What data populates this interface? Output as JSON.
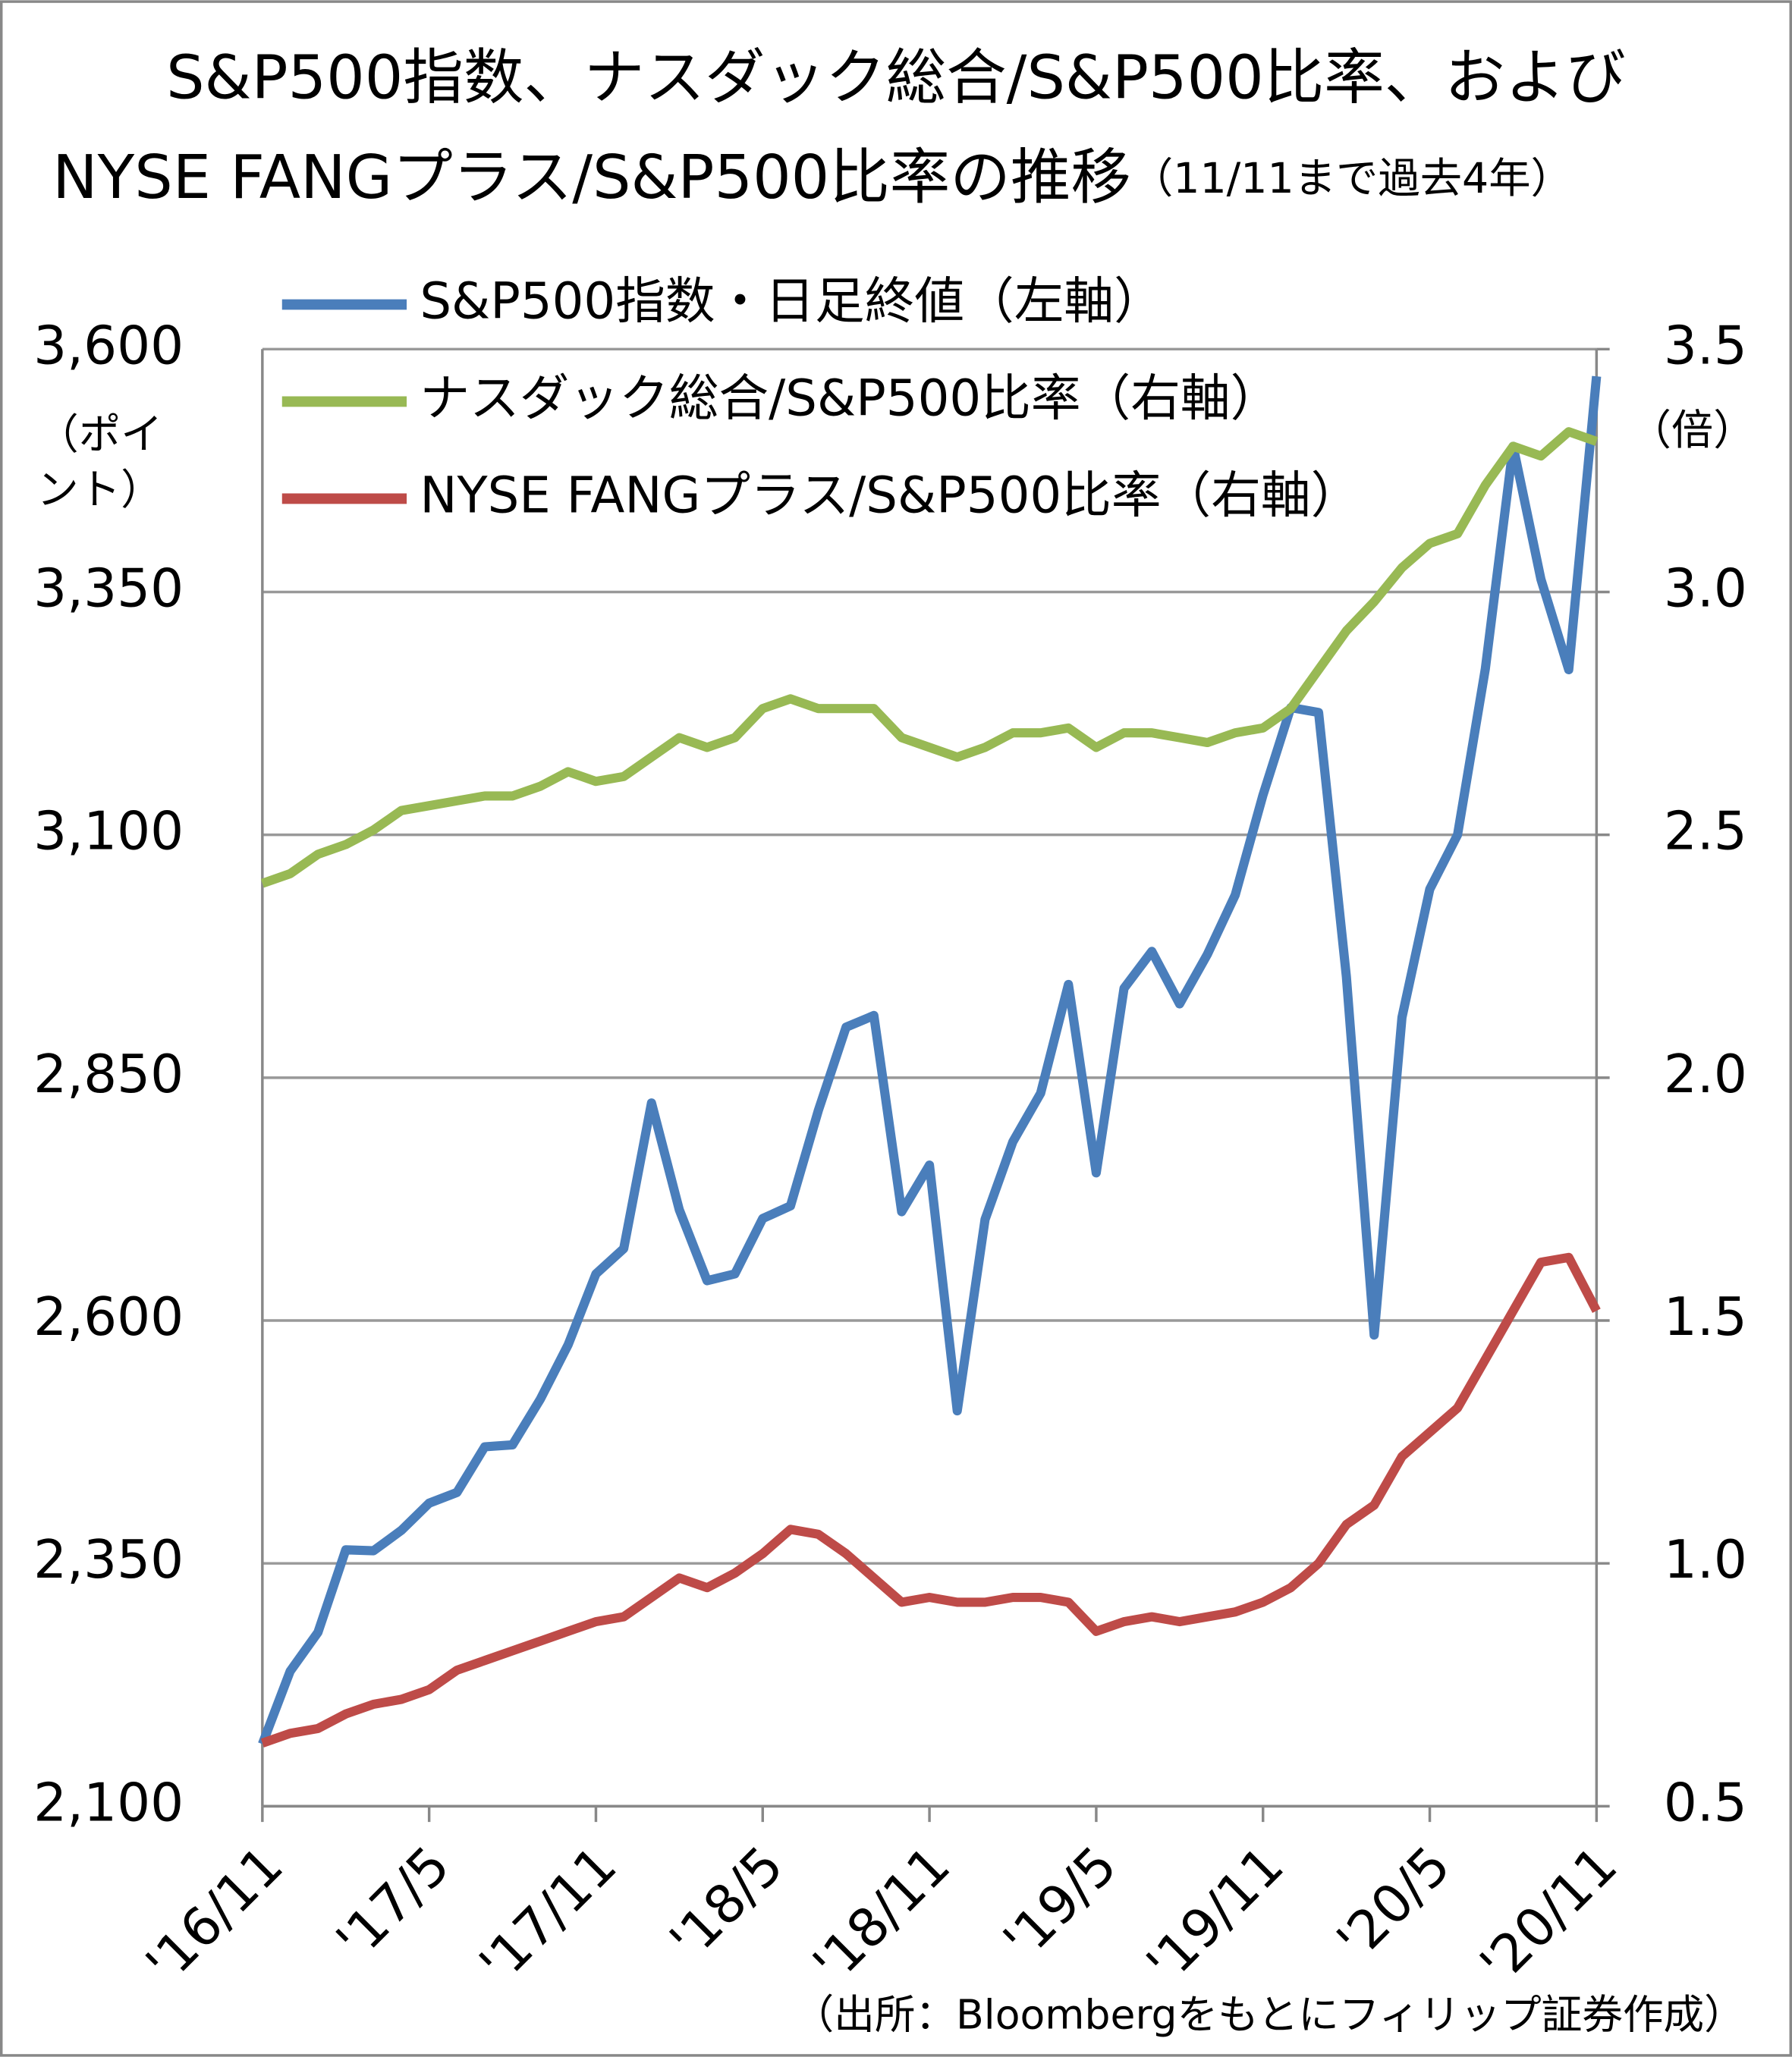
{
  "chart_data": {
    "type": "line",
    "title": "S&P500指数、ナスダック総合/S&P500比率、および",
    "title_line2": "NYSE FANGプラス/S&P500比率の推移",
    "subtitle": "（11/11まで過去4年）",
    "y_label": "（ポイント）",
    "y2_label": "（倍）",
    "source": "（出所：Bloombergをもとにフィリップ証券作成）",
    "categories": [
      "'16/11",
      null,
      null,
      null,
      null,
      null,
      "'17/5",
      null,
      null,
      null,
      null,
      null,
      "'17/11",
      null,
      null,
      null,
      null,
      null,
      "'18/5",
      null,
      null,
      null,
      null,
      null,
      "'18/11",
      null,
      null,
      null,
      null,
      null,
      "'19/5",
      null,
      null,
      null,
      null,
      null,
      "'19/11",
      null,
      null,
      null,
      null,
      null,
      "'20/5",
      null,
      null,
      null,
      null,
      null,
      "'20/11"
    ],
    "series": [
      {
        "name": "S&P500指数・日足終値（左軸）",
        "color": "#4a7ebb",
        "values": [
          2164,
          2239,
          2279,
          2364,
          2363,
          2384,
          2412,
          2423,
          2470,
          2472,
          2519,
          2575,
          2648,
          2674,
          2824,
          2714,
          2641,
          2648,
          2705,
          2718,
          2816,
          2902,
          2914,
          2712,
          2760,
          2507,
          2704,
          2784,
          2834,
          2946,
          2752,
          2942,
          2980,
          2926,
          2977,
          3038,
          3141,
          3231,
          3226,
          2954,
          2585,
          2912,
          3044,
          3100,
          3271,
          3500,
          3363,
          3270,
          3572
        ]
      },
      {
        "name": "ナスダック総合/S&P500比率（右軸）",
        "color": "#98b954",
        "axis": "y2",
        "values": [
          2.4,
          2.42,
          2.46,
          2.48,
          2.51,
          2.55,
          2.56,
          2.57,
          2.58,
          2.58,
          2.6,
          2.63,
          2.61,
          2.62,
          2.66,
          2.7,
          2.68,
          2.7,
          2.76,
          2.78,
          2.76,
          2.76,
          2.76,
          2.7,
          2.68,
          2.66,
          2.68,
          2.71,
          2.71,
          2.72,
          2.68,
          2.71,
          2.71,
          2.7,
          2.69,
          2.71,
          2.72,
          2.76,
          2.84,
          2.92,
          2.98,
          3.05,
          3.1,
          3.12,
          3.22,
          3.3,
          3.28,
          3.33,
          3.31
        ]
      },
      {
        "name": "NYSE FANGプラス/S&P500比率（右軸）",
        "color": "#be4b48",
        "axis": "y2",
        "values": [
          0.63,
          0.65,
          0.66,
          0.69,
          0.71,
          0.72,
          0.74,
          0.78,
          0.8,
          0.82,
          0.84,
          0.86,
          0.88,
          0.89,
          0.93,
          0.97,
          0.95,
          0.98,
          1.02,
          1.07,
          1.06,
          1.02,
          0.97,
          0.92,
          0.93,
          0.92,
          0.92,
          0.93,
          0.93,
          0.92,
          0.86,
          0.88,
          0.89,
          0.88,
          0.89,
          0.9,
          0.92,
          0.95,
          1.0,
          1.08,
          1.12,
          1.22,
          1.27,
          1.32,
          1.42,
          1.52,
          1.62,
          1.63,
          1.52
        ]
      }
    ],
    "ylim": [
      2100,
      3600
    ],
    "yticks": [
      {
        "value": 2100,
        "label": "2,100"
      },
      {
        "value": 2350,
        "label": "2,350"
      },
      {
        "value": 2600,
        "label": "2,600"
      },
      {
        "value": 2850,
        "label": "2,850"
      },
      {
        "value": 3100,
        "label": "3,100"
      },
      {
        "value": 3350,
        "label": "3,350"
      },
      {
        "value": 3600,
        "label": "3,600"
      }
    ],
    "y2lim": [
      0.5,
      3.5
    ],
    "y2ticks": [
      0.5,
      {
        "value": 1,
        "label": "1.0"
      },
      1.5,
      {
        "value": 2,
        "label": "2.0"
      },
      2.5,
      {
        "value": 3,
        "label": "3.0"
      },
      3.5
    ],
    "grid": true
  }
}
